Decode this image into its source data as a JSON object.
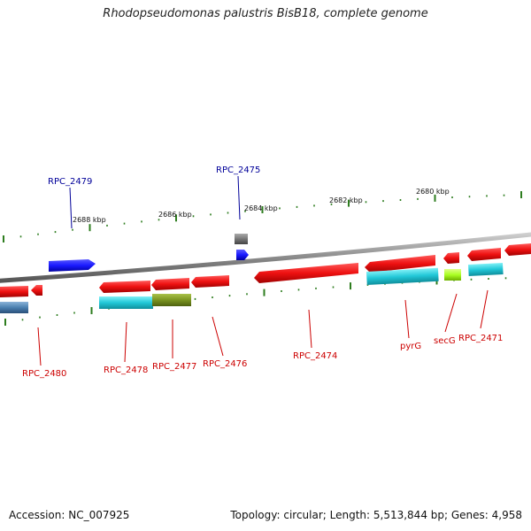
{
  "title": "Rhodopseudomonas palustris BisB18, complete genome",
  "footer": {
    "accession": "Accession: NC_007925",
    "summary": "Topology: circular; Length: 5,513,844 bp; Genes: 4,958"
  },
  "scale_labels": [
    "2688 kbp",
    "2686 kbp",
    "2684 kbp",
    "2682 kbp",
    "2680 kbp"
  ],
  "colors": {
    "backbone": "#8a8a8a",
    "tick": "#2e7d1f",
    "forward_gene": "#1a1aff",
    "reverse_gene": "#ee1111",
    "label_forward": "#000099",
    "label_reverse": "#cc0000",
    "cyan_feature": "#22c8d8",
    "olive_feature": "#7a9420",
    "gray_feature": "#777777",
    "steel_feature": "#4a7fb0",
    "lime_feature": "#aaff22"
  },
  "gene_labels": {
    "forward": [
      "RPC_2479",
      "RPC_2475"
    ],
    "reverse": [
      "RPC_2480",
      "RPC_2478",
      "RPC_2477",
      "RPC_2476",
      "RPC_2474",
      "pyrG",
      "secG",
      "RPC_2471"
    ]
  }
}
